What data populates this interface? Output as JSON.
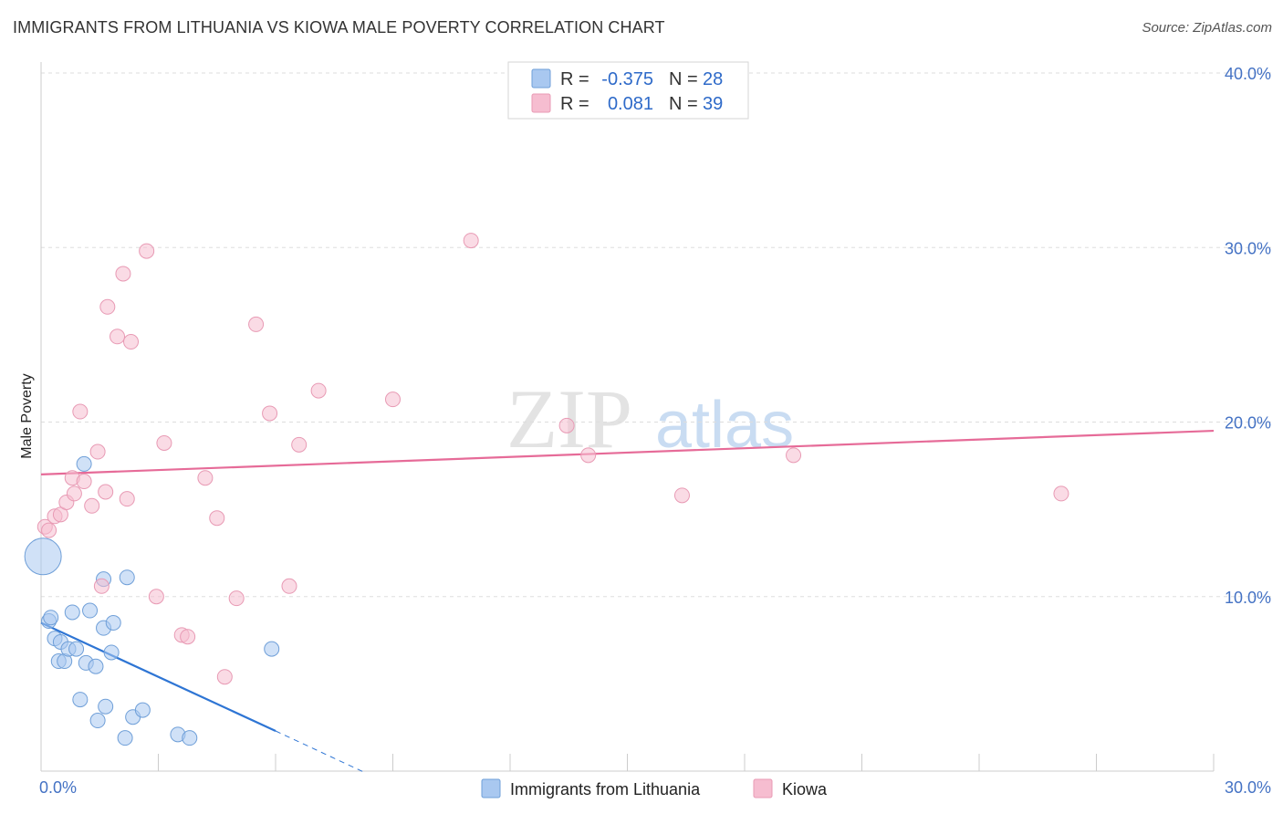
{
  "title": "IMMIGRANTS FROM LITHUANIA VS KIOWA MALE POVERTY CORRELATION CHART",
  "source": "Source: ZipAtlas.com",
  "watermark": {
    "zip": "ZIP",
    "atlas": "atlas"
  },
  "colors": {
    "blue_fill": "#a9c8f0",
    "blue_stroke": "#6f9fd8",
    "blue_line": "#2e75d4",
    "pink_fill": "#f6bdd0",
    "pink_stroke": "#e89ab4",
    "pink_line": "#e66b98",
    "tick_text": "#4472c4",
    "grid": "#dddddd"
  },
  "legend_top": [
    {
      "series": "Immigrants from Lithuania",
      "r_label": "R =",
      "r_value": "-0.375",
      "n_label": "N =",
      "n_value": "28"
    },
    {
      "series": "Kiowa",
      "r_label": "R =",
      "r_value": "0.081",
      "n_label": "N =",
      "n_value": "39"
    }
  ],
  "chart_data": {
    "type": "scatter",
    "title": "IMMIGRANTS FROM LITHUANIA VS KIOWA MALE POVERTY CORRELATION CHART",
    "xlabel": "",
    "ylabel": "Male Poverty",
    "xlim": [
      0,
      30
    ],
    "ylim": [
      0,
      40
    ],
    "x_ticks": [
      0,
      3,
      6,
      9,
      12,
      15,
      18,
      21,
      24,
      27,
      30
    ],
    "x_tick_labels": [
      {
        "value": 0,
        "label": "0.0%"
      },
      {
        "value": 30,
        "label": "30.0%"
      }
    ],
    "y_tick_labels": [
      {
        "value": 10,
        "label": "10.0%"
      },
      {
        "value": 20,
        "label": "20.0%"
      },
      {
        "value": 30,
        "label": "30.0%"
      },
      {
        "value": 40,
        "label": "40.0%"
      }
    ],
    "legend_bottom": [
      "Immigrants from Lithuania",
      "Kiowa"
    ],
    "series": [
      {
        "name": "Immigrants from Lithuania",
        "color": "blue",
        "points": [
          {
            "x": 0.05,
            "y": 12.3,
            "big": true
          },
          {
            "x": 0.2,
            "y": 8.6
          },
          {
            "x": 0.25,
            "y": 8.8
          },
          {
            "x": 0.35,
            "y": 7.6
          },
          {
            "x": 0.45,
            "y": 6.3
          },
          {
            "x": 0.5,
            "y": 7.4
          },
          {
            "x": 0.6,
            "y": 6.3
          },
          {
            "x": 0.7,
            "y": 7.0
          },
          {
            "x": 0.8,
            "y": 9.1
          },
          {
            "x": 0.9,
            "y": 7.0
          },
          {
            "x": 1.0,
            "y": 4.1
          },
          {
            "x": 1.1,
            "y": 17.6
          },
          {
            "x": 1.15,
            "y": 6.2
          },
          {
            "x": 1.25,
            "y": 9.2
          },
          {
            "x": 1.4,
            "y": 6.0
          },
          {
            "x": 1.45,
            "y": 2.9
          },
          {
            "x": 1.6,
            "y": 8.2
          },
          {
            "x": 1.65,
            "y": 3.7
          },
          {
            "x": 1.6,
            "y": 11.0
          },
          {
            "x": 1.8,
            "y": 6.8
          },
          {
            "x": 1.85,
            "y": 8.5
          },
          {
            "x": 2.15,
            "y": 1.9
          },
          {
            "x": 2.2,
            "y": 11.1
          },
          {
            "x": 2.35,
            "y": 3.1
          },
          {
            "x": 2.6,
            "y": 3.5
          },
          {
            "x": 3.5,
            "y": 2.1
          },
          {
            "x": 3.8,
            "y": 1.9
          },
          {
            "x": 5.9,
            "y": 7.0
          }
        ],
        "trend": {
          "x0": 0,
          "y0": 8.5,
          "x1": 6.0,
          "y1": 2.3,
          "dash_x1": 8.3,
          "dash_y1": -0.1
        }
      },
      {
        "name": "Kiowa",
        "color": "pink",
        "points": [
          {
            "x": 0.1,
            "y": 14.0
          },
          {
            "x": 0.2,
            "y": 13.8
          },
          {
            "x": 0.35,
            "y": 14.6
          },
          {
            "x": 0.5,
            "y": 14.7
          },
          {
            "x": 0.65,
            "y": 15.4
          },
          {
            "x": 0.8,
            "y": 16.8
          },
          {
            "x": 0.85,
            "y": 15.9
          },
          {
            "x": 1.0,
            "y": 20.6
          },
          {
            "x": 1.1,
            "y": 16.6
          },
          {
            "x": 1.3,
            "y": 15.2
          },
          {
            "x": 1.45,
            "y": 18.3
          },
          {
            "x": 1.55,
            "y": 10.6
          },
          {
            "x": 1.65,
            "y": 16.0
          },
          {
            "x": 1.7,
            "y": 26.6
          },
          {
            "x": 1.95,
            "y": 24.9
          },
          {
            "x": 2.1,
            "y": 28.5
          },
          {
            "x": 2.2,
            "y": 15.6
          },
          {
            "x": 2.3,
            "y": 24.6
          },
          {
            "x": 2.7,
            "y": 29.8
          },
          {
            "x": 2.95,
            "y": 10.0
          },
          {
            "x": 3.15,
            "y": 18.8
          },
          {
            "x": 3.6,
            "y": 7.8
          },
          {
            "x": 3.75,
            "y": 7.7
          },
          {
            "x": 4.2,
            "y": 16.8
          },
          {
            "x": 4.5,
            "y": 14.5
          },
          {
            "x": 4.7,
            "y": 5.4
          },
          {
            "x": 5.0,
            "y": 9.9
          },
          {
            "x": 5.5,
            "y": 25.6
          },
          {
            "x": 5.85,
            "y": 20.5
          },
          {
            "x": 6.35,
            "y": 10.6
          },
          {
            "x": 6.6,
            "y": 18.7
          },
          {
            "x": 7.1,
            "y": 21.8
          },
          {
            "x": 9.0,
            "y": 21.3
          },
          {
            "x": 11.0,
            "y": 30.4
          },
          {
            "x": 13.45,
            "y": 19.8
          },
          {
            "x": 14.0,
            "y": 18.1
          },
          {
            "x": 16.4,
            "y": 15.8
          },
          {
            "x": 19.25,
            "y": 18.1
          },
          {
            "x": 26.1,
            "y": 15.9
          }
        ],
        "trend": {
          "x0": 0,
          "y0": 17.0,
          "x1": 30,
          "y1": 19.5
        }
      }
    ]
  }
}
